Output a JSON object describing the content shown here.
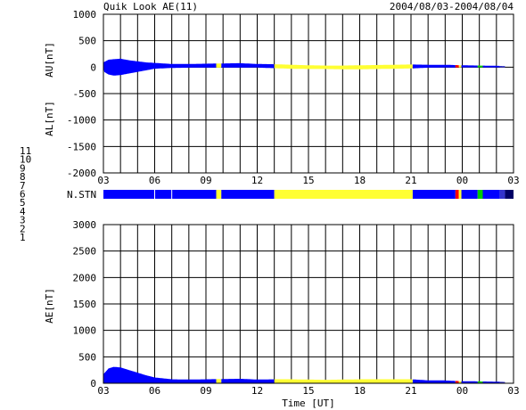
{
  "header": {
    "title": "Quik Look AE(11)",
    "date_range": "2004/08/03-2004/08/04"
  },
  "station_legend": [
    "11",
    "10",
    "9",
    "8",
    "7",
    "6",
    "5",
    "4",
    "3",
    "2",
    "1"
  ],
  "station_colors": {
    "1": "#3333cc",
    "2": "#9900cc",
    "3": "#00cccc",
    "4": "#bbbbbb",
    "5": "#eeeeee",
    "6": "#ff0000",
    "7": "#00cc00",
    "8": "#ffff33",
    "9": "#0000ff",
    "10": "#ff00ff",
    "11": "#33ffff"
  },
  "chart_data": [
    {
      "type": "area",
      "panel": "AU/AL",
      "ylabel_top": "AU[nT]",
      "ylabel_bottom": "AL[nT]",
      "xlabel": "",
      "x_ticks": [
        "03",
        "06",
        "09",
        "12",
        "15",
        "18",
        "21",
        "00",
        "03"
      ],
      "y_ticks": [
        1000,
        500,
        0,
        -500,
        -1000,
        -1500,
        -2000
      ],
      "ylim": [
        -2000,
        1000
      ],
      "xlim": [
        3,
        27
      ],
      "grid": true,
      "au": [
        [
          3.0,
          90
        ],
        [
          3.3,
          140
        ],
        [
          3.6,
          150
        ],
        [
          4.0,
          160
        ],
        [
          4.5,
          130
        ],
        [
          5.0,
          110
        ],
        [
          5.5,
          90
        ],
        [
          6.0,
          80
        ],
        [
          7.0,
          60
        ],
        [
          8.0,
          60
        ],
        [
          9.0,
          65
        ],
        [
          10.0,
          70
        ],
        [
          11.0,
          75
        ],
        [
          12.0,
          60
        ],
        [
          13.0,
          55
        ],
        [
          14.0,
          45
        ],
        [
          15.0,
          35
        ],
        [
          16.0,
          30
        ],
        [
          17.0,
          30
        ],
        [
          18.0,
          35
        ],
        [
          19.0,
          40
        ],
        [
          20.0,
          45
        ],
        [
          21.0,
          50
        ],
        [
          22.0,
          45
        ],
        [
          23.0,
          45
        ],
        [
          23.5,
          40
        ],
        [
          24.0,
          35
        ],
        [
          25.0,
          30
        ],
        [
          26.0,
          25
        ],
        [
          26.5,
          20
        ]
      ],
      "al": [
        [
          3.0,
          -80
        ],
        [
          3.3,
          -140
        ],
        [
          3.6,
          -160
        ],
        [
          4.0,
          -150
        ],
        [
          4.5,
          -120
        ],
        [
          5.0,
          -90
        ],
        [
          5.5,
          -60
        ],
        [
          6.0,
          -30
        ],
        [
          7.0,
          -15
        ],
        [
          8.0,
          -10
        ],
        [
          9.0,
          -10
        ],
        [
          10.0,
          -10
        ],
        [
          11.0,
          -10
        ],
        [
          12.0,
          -8
        ],
        [
          13.0,
          -20
        ],
        [
          14.0,
          -30
        ],
        [
          15.0,
          -35
        ],
        [
          16.0,
          -35
        ],
        [
          17.0,
          -40
        ],
        [
          18.0,
          -40
        ],
        [
          19.0,
          -35
        ],
        [
          20.0,
          -30
        ],
        [
          21.0,
          -25
        ],
        [
          22.0,
          -10
        ],
        [
          23.0,
          -8
        ],
        [
          24.0,
          -5
        ],
        [
          25.0,
          -5
        ],
        [
          26.0,
          -5
        ],
        [
          26.5,
          -5
        ]
      ],
      "color_segments": [
        {
          "from": 3.0,
          "to": 9.6,
          "station": "9"
        },
        {
          "from": 9.6,
          "to": 9.9,
          "station": "8"
        },
        {
          "from": 9.9,
          "to": 13.0,
          "station": "9"
        },
        {
          "from": 13.0,
          "to": 21.1,
          "station": "8"
        },
        {
          "from": 21.1,
          "to": 23.6,
          "station": "9"
        },
        {
          "from": 23.6,
          "to": 23.8,
          "station": "6"
        },
        {
          "from": 23.8,
          "to": 23.95,
          "station": "8"
        },
        {
          "from": 23.95,
          "to": 24.9,
          "station": "9"
        },
        {
          "from": 24.9,
          "to": 25.2,
          "station": "7"
        },
        {
          "from": 25.2,
          "to": 26.2,
          "station": "9"
        },
        {
          "from": 26.2,
          "to": 26.5,
          "station": "1"
        }
      ]
    },
    {
      "type": "area",
      "panel": "AE",
      "ylabel": "AE[nT]",
      "xlabel": "Time [UT]",
      "x_ticks": [
        "03",
        "06",
        "09",
        "12",
        "15",
        "18",
        "21",
        "00",
        "03"
      ],
      "y_ticks": [
        3000,
        2500,
        2000,
        1500,
        1000,
        500,
        0
      ],
      "ylim": [
        0,
        3000
      ],
      "xlim": [
        3,
        27
      ],
      "grid": true,
      "ae": [
        [
          3.0,
          170
        ],
        [
          3.3,
          280
        ],
        [
          3.6,
          310
        ],
        [
          4.0,
          300
        ],
        [
          4.5,
          250
        ],
        [
          5.0,
          200
        ],
        [
          5.5,
          150
        ],
        [
          6.0,
          110
        ],
        [
          7.0,
          75
        ],
        [
          8.0,
          70
        ],
        [
          9.0,
          75
        ],
        [
          10.0,
          80
        ],
        [
          11.0,
          85
        ],
        [
          12.0,
          70
        ],
        [
          13.0,
          75
        ],
        [
          14.0,
          75
        ],
        [
          15.0,
          70
        ],
        [
          16.0,
          65
        ],
        [
          17.0,
          70
        ],
        [
          18.0,
          75
        ],
        [
          19.0,
          75
        ],
        [
          20.0,
          75
        ],
        [
          21.0,
          75
        ],
        [
          22.0,
          55
        ],
        [
          23.0,
          53
        ],
        [
          23.5,
          45
        ],
        [
          24.0,
          40
        ],
        [
          25.0,
          35
        ],
        [
          26.0,
          30
        ],
        [
          26.5,
          25
        ]
      ]
    }
  ],
  "station_bar": {
    "label": "N.STN"
  }
}
